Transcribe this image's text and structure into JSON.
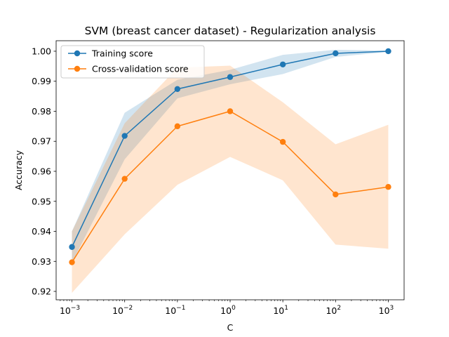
{
  "chart_data": {
    "type": "line",
    "title": "SVM (breast cancer dataset) - Regularization analysis",
    "xlabel": "C",
    "ylabel": "Accuracy",
    "xscale": "log",
    "x": [
      0.001,
      0.01,
      0.1,
      1,
      10,
      100,
      1000
    ],
    "x_tick_labels": [
      {
        "base": "10",
        "exp": "−3"
      },
      {
        "base": "10",
        "exp": "−2"
      },
      {
        "base": "10",
        "exp": "−1"
      },
      {
        "base": "10",
        "exp": "0"
      },
      {
        "base": "10",
        "exp": "1"
      },
      {
        "base": "10",
        "exp": "2"
      },
      {
        "base": "10",
        "exp": "3"
      }
    ],
    "y_ticks": [
      "0.92",
      "0.93",
      "0.94",
      "0.95",
      "0.96",
      "0.97",
      "0.98",
      "0.99",
      "1.00"
    ],
    "ylim": [
      0.9172,
      1.0035
    ],
    "xlim_exp": [
      -3.3,
      3.3
    ],
    "legend_position": "top-left",
    "grid": false,
    "series": [
      {
        "name": "Training score",
        "color": "#1f77b4",
        "values": [
          0.9348,
          0.9718,
          0.9874,
          0.9914,
          0.9956,
          0.9993,
          1.0
        ],
        "upper": [
          0.94,
          0.9795,
          0.9905,
          0.9938,
          0.9988,
          1.0005,
          1.0002
        ],
        "lower": [
          0.9296,
          0.964,
          0.9843,
          0.989,
          0.9924,
          0.9981,
          0.9998
        ]
      },
      {
        "name": "Cross-validation score",
        "color": "#ff7f0e",
        "values": [
          0.9297,
          0.9575,
          0.975,
          0.98,
          0.9698,
          0.9523,
          0.9548
        ],
        "upper": [
          0.94,
          0.976,
          0.9945,
          0.9952,
          0.983,
          0.969,
          0.9755
        ],
        "lower": [
          0.9195,
          0.939,
          0.9555,
          0.9648,
          0.957,
          0.9356,
          0.9342
        ]
      }
    ]
  }
}
